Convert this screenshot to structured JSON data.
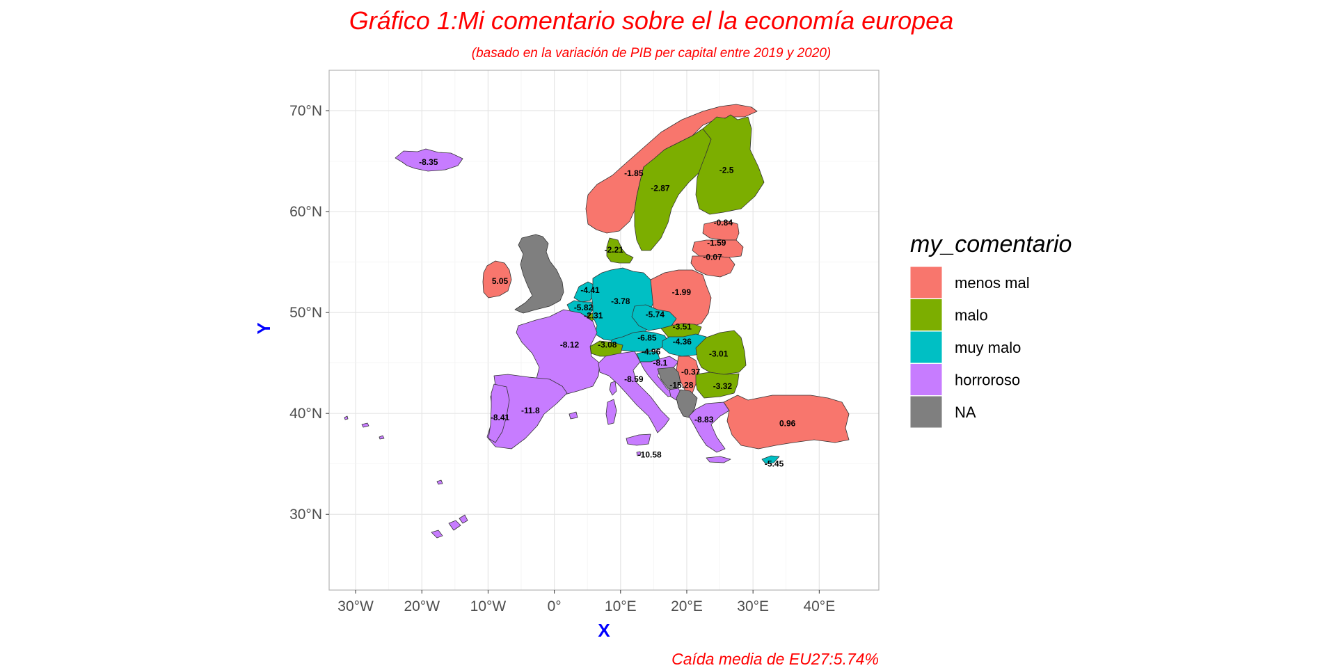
{
  "title": "Gráfico 1:Mi comentario sobre el la economía europea",
  "subtitle": "(basado en la variación de PIB per capital entre 2019 y 2020)",
  "caption": "Caída media de EU27:5.74%",
  "axes": {
    "x_title": "X",
    "y_title": "Y",
    "x_ticks": [
      "30°W",
      "20°W",
      "10°W",
      "0°",
      "10°E",
      "20°E",
      "30°E",
      "40°E"
    ],
    "y_ticks": [
      "30°N",
      "40°N",
      "50°N",
      "60°N",
      "70°N"
    ]
  },
  "legend": {
    "title": "my_comentario",
    "items": [
      {
        "label": "menos mal",
        "color": "#F8766D"
      },
      {
        "label": "malo",
        "color": "#7CAE00"
      },
      {
        "label": "muy malo",
        "color": "#00BFC4"
      },
      {
        "label": "horroroso",
        "color": "#C77CFF"
      },
      {
        "label": "NA",
        "color": "#7F7F7F"
      }
    ]
  },
  "colors": {
    "title": "#FF0000",
    "axis_title": "#0000FF",
    "axis_text": "#4D4D4D",
    "grid": "#E5E5E5",
    "panel_border": "#B3B3B3",
    "na": "#7F7F7F"
  },
  "chart_data": {
    "type": "choropleth",
    "projection": "longitude/latitude",
    "xlim": [
      -34,
      49
    ],
    "ylim": [
      22.5,
      74
    ],
    "x_tick_values": [
      -30,
      -20,
      -10,
      0,
      10,
      20,
      30,
      40
    ],
    "y_tick_values": [
      30,
      40,
      50,
      60,
      70
    ],
    "grid": true,
    "legend_position": "right",
    "labels": [
      {
        "value": "-8.35",
        "lon": -19,
        "lat": 64.9
      },
      {
        "value": "-1.85",
        "lon": 12,
        "lat": 63.8
      },
      {
        "value": "-2.87",
        "lon": 16,
        "lat": 62.3
      },
      {
        "value": "-2.5",
        "lon": 26,
        "lat": 64.1
      },
      {
        "value": "-0.84",
        "lon": 25.5,
        "lat": 58.9
      },
      {
        "value": "-1.59",
        "lon": 24.5,
        "lat": 56.9
      },
      {
        "value": "-0.07",
        "lon": 23.9,
        "lat": 55.5
      },
      {
        "value": "-2.21",
        "lon": 9,
        "lat": 56.2
      },
      {
        "value": "5.05",
        "lon": -8.2,
        "lat": 53.1
      },
      {
        "value": "-4.41",
        "lon": 5.4,
        "lat": 52.2
      },
      {
        "value": "-5.82",
        "lon": 4.4,
        "lat": 50.5
      },
      {
        "value": "-2.31",
        "lon": 5.9,
        "lat": 49.7
      },
      {
        "value": "-3.78",
        "lon": 10,
        "lat": 51.1
      },
      {
        "value": "-1.99",
        "lon": 19.2,
        "lat": 52
      },
      {
        "value": "-5.74",
        "lon": 15.2,
        "lat": 49.8
      },
      {
        "value": "-3.51",
        "lon": 19.3,
        "lat": 48.6
      },
      {
        "value": "-6.85",
        "lon": 14,
        "lat": 47.5
      },
      {
        "value": "-4.36",
        "lon": 19.3,
        "lat": 47.1
      },
      {
        "value": "-3.08",
        "lon": 8,
        "lat": 46.8
      },
      {
        "value": "-8.12",
        "lon": 2.3,
        "lat": 46.8
      },
      {
        "value": "-4.96",
        "lon": 14.6,
        "lat": 46.1
      },
      {
        "value": "-3.01",
        "lon": 24.8,
        "lat": 45.9
      },
      {
        "value": "-8.1",
        "lon": 16,
        "lat": 45
      },
      {
        "value": "-0.37",
        "lon": 20.6,
        "lat": 44.1
      },
      {
        "value": "-8.59",
        "lon": 12,
        "lat": 43.4
      },
      {
        "value": "-15.28",
        "lon": 19.2,
        "lat": 42.8
      },
      {
        "value": "-3.32",
        "lon": 25.4,
        "lat": 42.7
      },
      {
        "value": "-11.8",
        "lon": -3.6,
        "lat": 40.3
      },
      {
        "value": "-8.41",
        "lon": -8.2,
        "lat": 39.6
      },
      {
        "value": "-8.83",
        "lon": 22.6,
        "lat": 39.4
      },
      {
        "value": "0.96",
        "lon": 35.2,
        "lat": 39
      },
      {
        "value": "-10.58",
        "lon": 14.4,
        "lat": 35.9
      },
      {
        "value": "-5.45",
        "lon": 33.2,
        "lat": 35
      }
    ]
  }
}
